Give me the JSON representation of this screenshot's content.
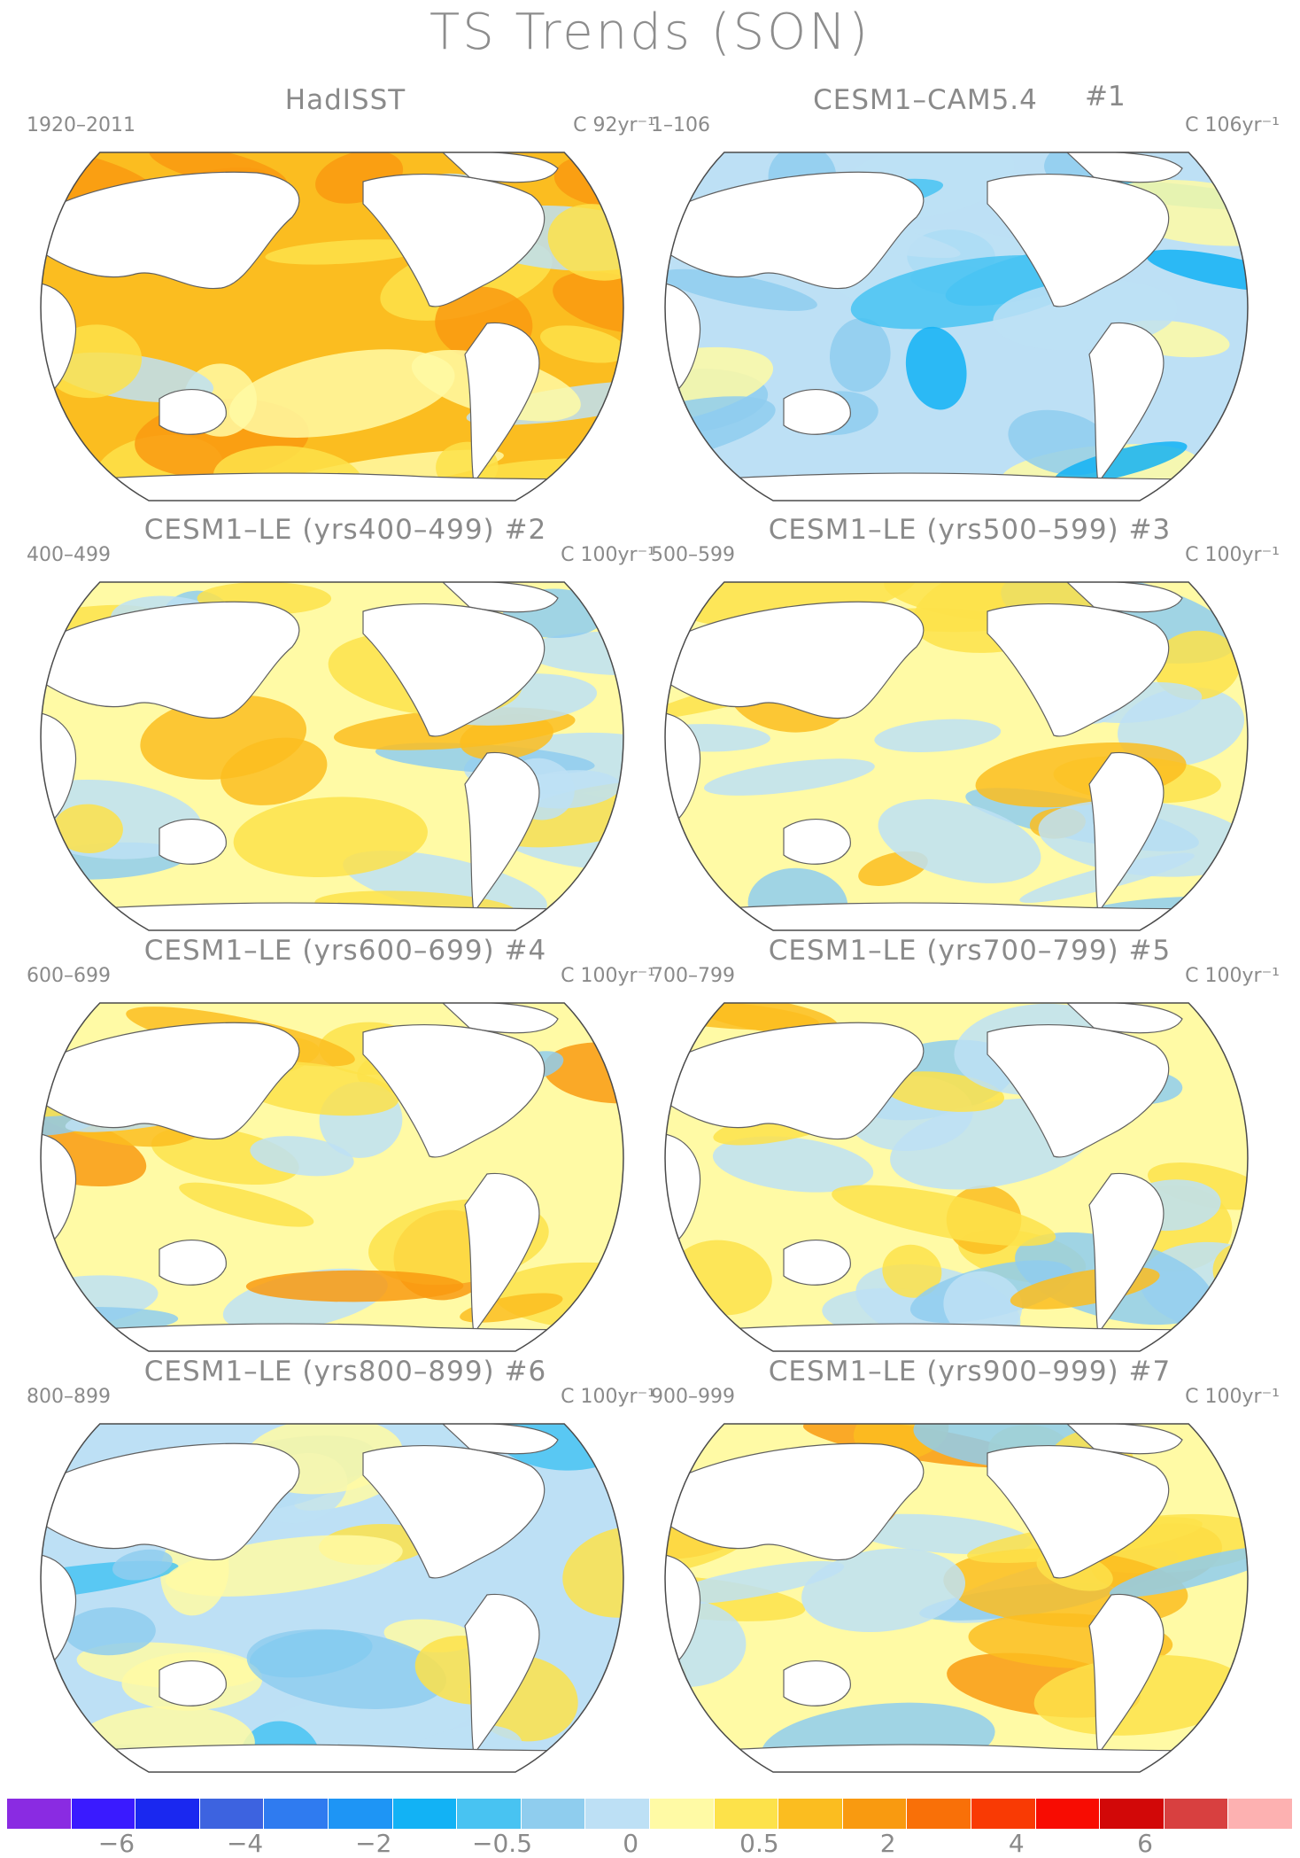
{
  "title": "TS Trends (SON)",
  "panels": [
    {
      "title": "HadISST",
      "left_label": "1920–2011",
      "right_label": "C 92yr⁻¹",
      "number": "",
      "style": "warm"
    },
    {
      "title": "CESM1–CAM5.4",
      "left_label": "1–106",
      "right_label": "C 106yr⁻¹",
      "number": "#1",
      "style": "cool"
    },
    {
      "title": "CESM1–LE (yrs400–499) #2",
      "left_label": "400–499",
      "right_label": "C 100yr⁻¹",
      "number": "",
      "style": "mixed"
    },
    {
      "title": "CESM1–LE (yrs500–599) #3",
      "left_label": "500–599",
      "right_label": "C 100yr⁻¹",
      "number": "",
      "style": "mixed"
    },
    {
      "title": "CESM1–LE (yrs600–699) #4",
      "left_label": "600–699",
      "right_label": "C 100yr⁻¹",
      "number": "",
      "style": "mixedwarm"
    },
    {
      "title": "CESM1–LE (yrs700–799) #5",
      "left_label": "700–799",
      "right_label": "C 100yr⁻¹",
      "number": "",
      "style": "mixed"
    },
    {
      "title": "CESM1–LE (yrs800–899) #6",
      "left_label": "800–899",
      "right_label": "C 100yr⁻¹",
      "number": "",
      "style": "mixedcool"
    },
    {
      "title": "CESM1–LE (yrs900–999) #7",
      "left_label": "900–999",
      "right_label": "C 100yr⁻¹",
      "number": "",
      "style": "mixedwarm"
    }
  ],
  "colorbar": {
    "colors": [
      "#8a2be2",
      "#3a1aff",
      "#1a28f0",
      "#3d63e0",
      "#2f7bf0",
      "#1e95f5",
      "#12b2f5",
      "#48c3f2",
      "#8fcdee",
      "#bde0f5",
      "#fffaa5",
      "#fde24a",
      "#fbbd20",
      "#f99a10",
      "#f97008",
      "#f93a04",
      "#f80c02",
      "#d20808",
      "#d84040",
      "#fdb1b1"
    ],
    "tick_labels": [
      "−6",
      "−4",
      "−2",
      "−0.5",
      "0",
      "0.5",
      "2",
      "4",
      "6"
    ]
  }
}
